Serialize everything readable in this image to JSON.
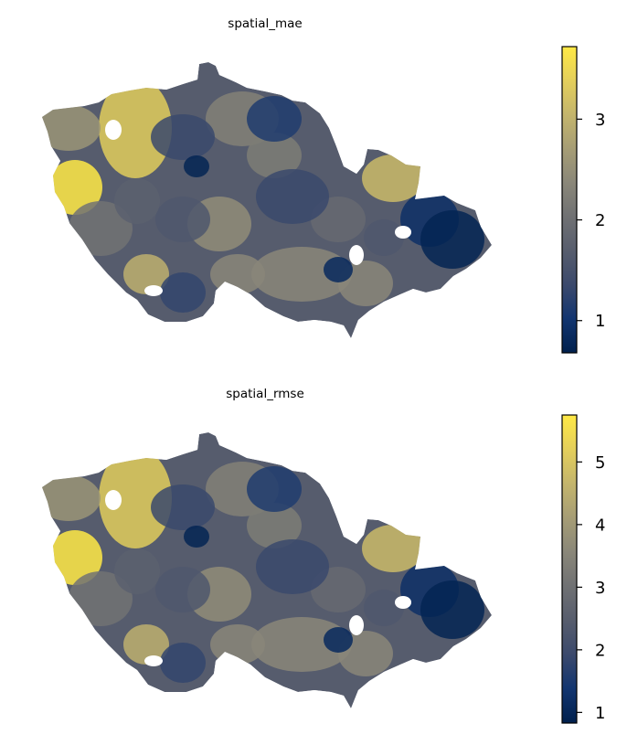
{
  "colormap": {
    "name": "cividis",
    "stops": [
      "#00204d",
      "#123570",
      "#3b496c",
      "#575d6d",
      "#707173",
      "#8a8779",
      "#a69d75",
      "#c4b56c",
      "#e4cf5b",
      "#ffe945"
    ]
  },
  "panels": [
    {
      "title": "spatial_mae",
      "colorbar": {
        "min": 0.68,
        "max": 3.72,
        "ticks": [
          "1",
          "2",
          "3"
        ],
        "tick_values": [
          1,
          2,
          3
        ]
      }
    },
    {
      "title": "spatial_rmse",
      "colorbar": {
        "min": 0.83,
        "max": 5.75,
        "ticks": [
          "1",
          "2",
          "3",
          "4",
          "5"
        ],
        "tick_values": [
          1,
          2,
          3,
          4,
          5
        ]
      }
    }
  ]
}
